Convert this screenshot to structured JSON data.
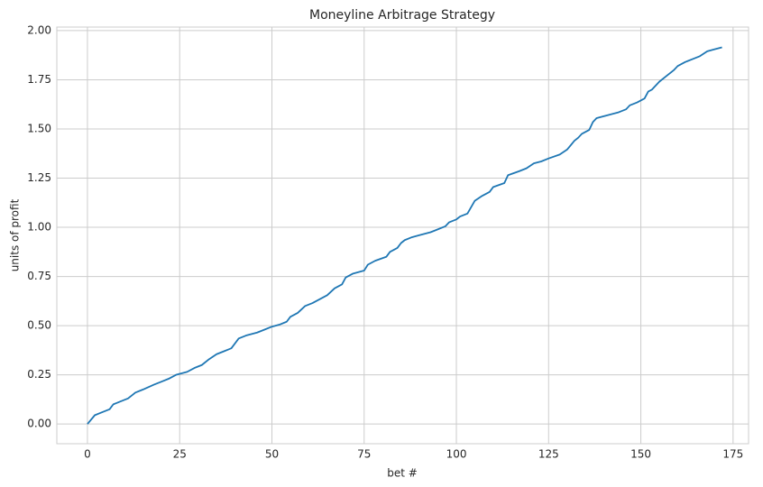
{
  "chart_data": {
    "type": "line",
    "title": "Moneyline Arbitrage Strategy",
    "x_label": "bet #",
    "y_label": "units of profit",
    "color": "#1f77b4",
    "grid": true,
    "x": [
      0,
      2,
      4,
      6,
      7,
      9,
      11,
      13,
      15,
      18,
      20,
      22,
      24,
      27,
      29,
      31,
      33,
      35,
      37,
      39,
      41,
      43,
      46,
      48,
      50,
      52,
      54,
      55,
      57,
      59,
      61,
      63,
      65,
      67,
      69,
      70,
      72,
      75,
      76,
      78,
      81,
      82,
      84,
      85,
      86,
      88,
      90,
      93,
      95,
      97,
      98,
      100,
      101,
      103,
      105,
      107,
      109,
      110,
      113,
      114,
      117,
      119,
      121,
      123,
      125,
      128,
      130,
      132,
      133,
      134,
      136,
      137,
      138,
      141,
      144,
      146,
      147,
      149,
      151,
      152,
      153,
      155,
      157,
      159,
      160,
      162,
      164,
      166,
      168,
      170,
      172
    ],
    "values": [
      0.0,
      0.045,
      0.06,
      0.075,
      0.1,
      0.115,
      0.13,
      0.16,
      0.175,
      0.2,
      0.215,
      0.23,
      0.25,
      0.265,
      0.285,
      0.3,
      0.33,
      0.355,
      0.37,
      0.385,
      0.435,
      0.45,
      0.465,
      0.48,
      0.495,
      0.505,
      0.52,
      0.545,
      0.565,
      0.6,
      0.615,
      0.635,
      0.655,
      0.69,
      0.71,
      0.745,
      0.765,
      0.78,
      0.81,
      0.83,
      0.85,
      0.875,
      0.895,
      0.92,
      0.935,
      0.95,
      0.96,
      0.975,
      0.99,
      1.005,
      1.025,
      1.04,
      1.055,
      1.07,
      1.135,
      1.16,
      1.18,
      1.205,
      1.225,
      1.265,
      1.285,
      1.3,
      1.325,
      1.335,
      1.35,
      1.37,
      1.395,
      1.44,
      1.455,
      1.475,
      1.495,
      1.535,
      1.555,
      1.57,
      1.585,
      1.6,
      1.62,
      1.635,
      1.655,
      1.69,
      1.7,
      1.74,
      1.77,
      1.8,
      1.82,
      1.84,
      1.855,
      1.87,
      1.895,
      1.905,
      1.915
    ],
    "xlim": [
      -8.3,
      179.2
    ],
    "xticks": [
      0,
      25,
      50,
      75,
      100,
      125,
      150,
      175
    ],
    "ylim": [
      -0.1,
      2.018
    ],
    "yticks": [
      {
        "value": 0,
        "label": "0.00"
      },
      {
        "value": 0.25,
        "label": "0.25"
      },
      {
        "value": 0.5,
        "label": "0.50"
      },
      {
        "value": 0.75,
        "label": "0.75"
      },
      {
        "value": 1,
        "label": "1.00"
      },
      {
        "value": 1.25,
        "label": "1.25"
      },
      {
        "value": 1.5,
        "label": "1.50"
      },
      {
        "value": 1.75,
        "label": "1.75"
      },
      {
        "value": 2,
        "label": "2.00"
      }
    ]
  }
}
